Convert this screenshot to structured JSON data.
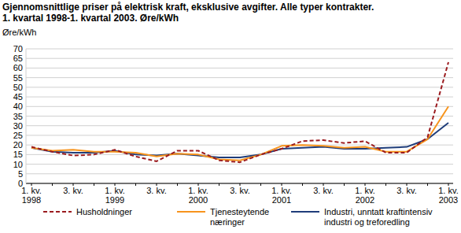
{
  "chart_data": {
    "type": "line",
    "title": "Gjennomsnittlige priser på elektrisk kraft, eksklusive avgifter. Alle typer kontrakter.",
    "subtitle": "1. kvartal 1998-1. kvartal 2003. Øre/kWh",
    "y_label": "Øre/kWh",
    "categories": [
      "1. kv.\n1998",
      null,
      "3. kv.",
      null,
      "1. kv.\n1999",
      null,
      "3. kv.",
      null,
      "1. kv.\n2000",
      null,
      "3. kv.",
      null,
      "1. kv.\n2001",
      null,
      "3. kv.",
      null,
      "1. kv.\n2002",
      null,
      "3. kv.",
      null,
      "1. kv.\n2003"
    ],
    "series": [
      {
        "name": "Husholdninger",
        "color": "#9b1b1f",
        "line_style": "dashed",
        "values": [
          19,
          16.5,
          14.5,
          15,
          17.5,
          14,
          11.5,
          17,
          17,
          12,
          11,
          15,
          18,
          22,
          22.5,
          21,
          22,
          16,
          16,
          24,
          63
        ]
      },
      {
        "name": "Tjenesteytende næringer",
        "color": "#f7941d",
        "line_style": "solid",
        "values": [
          18.5,
          17,
          17.5,
          16.5,
          16.5,
          16,
          14,
          15.5,
          15,
          12.5,
          12,
          15,
          19.5,
          20,
          19.5,
          18.5,
          19,
          16.5,
          16.5,
          23,
          40
        ]
      },
      {
        "name": "Industri, unntatt kraftintensiv industri og treforedling",
        "color": "#1f3d7a",
        "line_style": "solid",
        "values": [
          18.5,
          16.5,
          16,
          16,
          17,
          15,
          14.5,
          15.5,
          14.5,
          13.5,
          13.5,
          15,
          18,
          18.5,
          19,
          18,
          18,
          18.5,
          19,
          23,
          31.5
        ]
      }
    ],
    "ylim": [
      0,
      70
    ],
    "yticks": [
      0,
      5,
      10,
      15,
      20,
      25,
      30,
      35,
      40,
      45,
      50,
      55,
      60,
      65,
      70
    ],
    "grid": true,
    "legend": "bottom"
  }
}
